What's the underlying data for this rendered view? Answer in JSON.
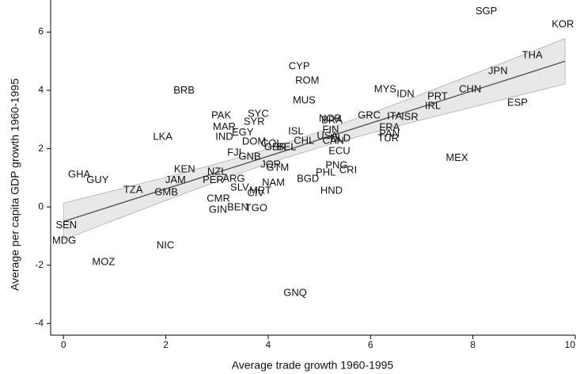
{
  "chart_data": {
    "type": "scatter",
    "x_label": "Average trade growth 1960-1995",
    "y_label": "Average per capita GDP growth 1960-1995",
    "xlim": [
      -0.25,
      10
    ],
    "ylim": [
      -4.4,
      7.1
    ],
    "xticks": [
      0,
      2,
      4,
      6,
      8,
      10
    ],
    "yticks": [
      -4,
      -2,
      0,
      2,
      4,
      6
    ],
    "labels": [
      "SGP",
      "KOR",
      "THA",
      "JPN",
      "CHN",
      "ESP",
      "PRT",
      "IRL",
      "MYS",
      "IDN",
      "ISR",
      "ITA",
      "GRC",
      "FRA",
      "PAN",
      "TUR",
      "NLD",
      "USA",
      "CAN",
      "FIN",
      "NOR",
      "BRA",
      "ECU",
      "PNG",
      "CRI",
      "PHL",
      "HND",
      "BGD",
      "MEX",
      "CYP",
      "ROM",
      "MUS",
      "ISL",
      "CHL",
      "DOM",
      "COL",
      "GBR",
      "BEL",
      "EGY",
      "SYC",
      "SYR",
      "PAK",
      "MAR",
      "IND",
      "FJI",
      "GNB",
      "JOR",
      "GTM",
      "NAM",
      "NZL",
      "ARG",
      "PER",
      "SLV",
      "MRT",
      "CIV",
      "CMR",
      "GIN",
      "BEN",
      "TGO",
      "BRB",
      "LKA",
      "KEN",
      "JAM",
      "GMB",
      "TZA",
      "GHA",
      "GUY",
      "SEN",
      "MDG",
      "MOZ",
      "NIC",
      "GNQ"
    ],
    "x": [
      8.05,
      9.54,
      8.96,
      8.3,
      7.73,
      8.67,
      7.11,
      7.06,
      6.07,
      6.51,
      6.6,
      6.32,
      5.75,
      6.17,
      6.17,
      6.14,
      5.21,
      4.95,
      5.06,
      5.06,
      4.99,
      5.04,
      5.18,
      5.12,
      5.39,
      4.93,
      5.02,
      4.56,
      7.47,
      4.4,
      4.53,
      4.48,
      4.39,
      4.5,
      3.49,
      3.86,
      3.92,
      4.17,
      3.29,
      3.6,
      3.52,
      2.89,
      2.92,
      2.97,
      3.2,
      3.42,
      3.85,
      3.96,
      3.88,
      2.81,
      3.11,
      2.72,
      3.26,
      3.63,
      3.59,
      2.8,
      2.84,
      3.2,
      3.55,
      2.15,
      1.75,
      2.16,
      1.99,
      1.78,
      1.17,
      0.09,
      0.45,
      -0.15,
      -0.22,
      0.56,
      1.82,
      4.3
    ],
    "y": [
      6.71,
      6.25,
      5.19,
      4.65,
      4.02,
      3.56,
      3.78,
      3.45,
      4.02,
      3.86,
      3.07,
      3.1,
      3.13,
      2.72,
      2.5,
      2.34,
      2.34,
      2.42,
      2.26,
      2.64,
      3.02,
      2.96,
      1.9,
      1.41,
      1.25,
      1.17,
      0.54,
      0.95,
      1.68,
      4.81,
      4.32,
      3.64,
      2.58,
      2.26,
      2.23,
      2.17,
      2.04,
      2.04,
      2.55,
      3.18,
      2.91,
      3.13,
      2.74,
      2.39,
      1.85,
      1.71,
      1.44,
      1.33,
      0.82,
      1.2,
      0.95,
      0.92,
      0.65,
      0.54,
      0.46,
      0.27,
      -0.11,
      -0.03,
      -0.05,
      3.99,
      2.39,
      1.28,
      0.92,
      0.49,
      0.57,
      1.11,
      0.92,
      -0.63,
      -1.17,
      -1.9,
      -1.33,
      -2.96
    ],
    "fit": {
      "x": [
        0,
        1,
        2,
        3,
        4,
        4.3,
        5,
        6,
        7,
        8,
        9,
        9.8
      ],
      "y": [
        -0.5,
        0.06,
        0.62,
        1.18,
        1.74,
        1.91,
        2.31,
        2.87,
        3.43,
        3.99,
        4.55,
        5.0
      ],
      "upper": [
        0.13,
        0.57,
        1.02,
        1.48,
        1.99,
        2.16,
        2.58,
        3.21,
        3.87,
        4.55,
        5.23,
        5.78
      ],
      "lower": [
        -1.13,
        -0.45,
        0.22,
        0.88,
        1.49,
        1.66,
        2.04,
        2.53,
        2.99,
        3.43,
        3.87,
        4.22
      ],
      "line_color": "#555555",
      "band_color": "#e8e8e8"
    }
  }
}
